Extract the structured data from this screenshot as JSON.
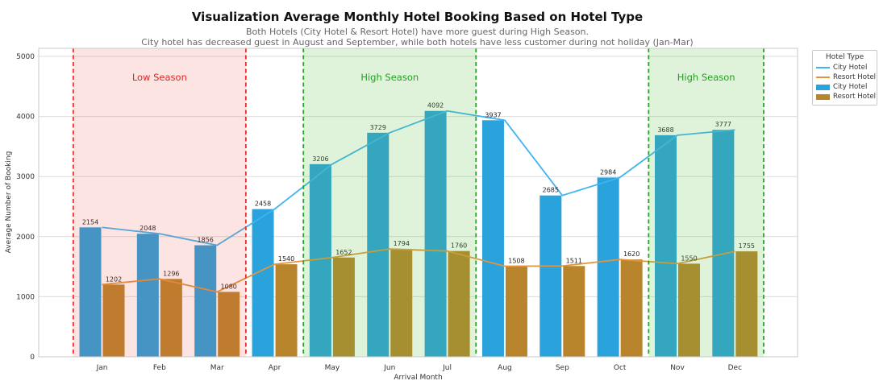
{
  "legend": {
    "title": "Hotel Type",
    "items": [
      {
        "label": "City Hotel",
        "swatch": "line",
        "color": "#3fb4f0"
      },
      {
        "label": "Resort Hotel",
        "swatch": "line",
        "color": "#e2953c"
      },
      {
        "label": "City Hotel",
        "swatch": "bar",
        "color": "#2aa2dc"
      },
      {
        "label": "Resort Hotel",
        "swatch": "bar",
        "color": "#b8842c"
      }
    ]
  },
  "chart_data": {
    "type": "bar",
    "title": "Visualization Average Monthly Hotel Booking Based on Hotel Type",
    "subtitle1": "Both Hotels (City Hotel & Resort Hotel) have more guest during High Season.",
    "subtitle2": "City hotel has decreased guest in August and September, while both hotels have less customer during not holiday (Jan-Mar)",
    "categories": [
      "Jan",
      "Feb",
      "Mar",
      "Apr",
      "May",
      "Jun",
      "Jul",
      "Aug",
      "Sep",
      "Oct",
      "Nov",
      "Dec"
    ],
    "series": [
      {
        "name": "City Hotel",
        "render": "bar+line",
        "bar_color": "#2aa2dc",
        "line_color": "#3fb4f0",
        "values": [
          2154,
          2048,
          1856,
          2458,
          3206,
          3729,
          4092,
          3937,
          2685,
          2984,
          3688,
          3777
        ]
      },
      {
        "name": "Resort Hotel",
        "render": "bar+line",
        "bar_color": "#b8842c",
        "line_color": "#e2953c",
        "values": [
          1202,
          1296,
          1080,
          1540,
          1652,
          1794,
          1760,
          1508,
          1511,
          1620,
          1550,
          1755
        ]
      }
    ],
    "xlabel": "Arrival Month",
    "ylabel": "Average Number of Booking",
    "yticks": [
      0,
      1000,
      2000,
      3000,
      4000,
      5000
    ],
    "ylim": [
      0,
      5130
    ],
    "grid": true,
    "grid_color": "#dcdcdc",
    "spine_color": "#c9c9c9",
    "tick_label_color": "#333333",
    "value_label_color": "#1f1f1f",
    "legend_position": "outside-upper-right",
    "bar_value_labels": true,
    "seasons": [
      {
        "label": "Low Season",
        "start": "Jan",
        "end": "Mar",
        "fill": "rgba(232,76,62,0.15)",
        "edge_color": "#e82e2e",
        "label_color": "#e02525"
      },
      {
        "label": "High Season",
        "start": "May",
        "end": "Jul",
        "fill": "rgba(96,190,72,0.20)",
        "edge_color": "#2ca02c",
        "label_color": "#1fa31f"
      },
      {
        "label": "High Season",
        "start": "Nov",
        "end": "Dec",
        "fill": "rgba(96,190,72,0.20)",
        "edge_color": "#2ca02c",
        "label_color": "#1fa31f"
      }
    ]
  }
}
